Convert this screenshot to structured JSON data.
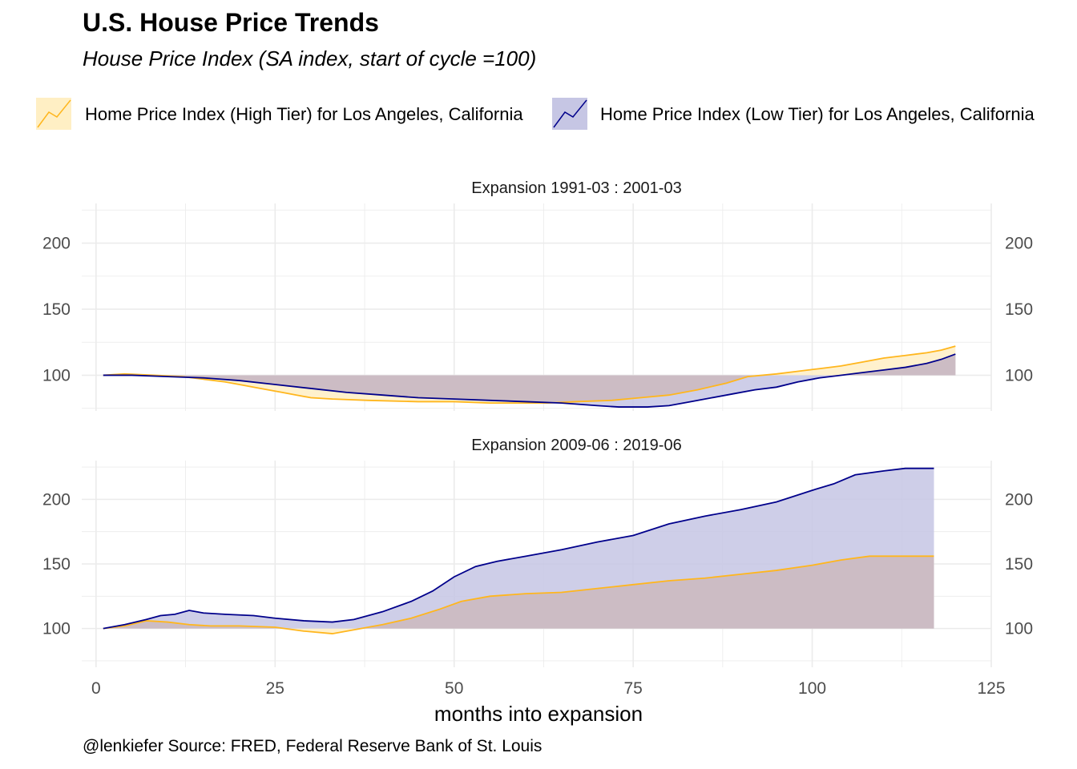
{
  "title": "U.S. House Price Trends",
  "subtitle": "House Price Index (SA index, start of cycle =100)",
  "caption": "@lenkiefer Source: FRED, Federal Reserve Bank of St. Louis",
  "colors": {
    "high": "#FFB61D",
    "high_fill": "#FFEFC4",
    "low": "#00008B",
    "low_fill": "#C6C6E4",
    "overlap_fill": "#CCBCC4",
    "grid": "#EBEBEB"
  },
  "legend": [
    {
      "label": "Home Price Index (High Tier) for Los Angeles, California"
    },
    {
      "label": "Home Price Index (Low Tier) for Los Angeles, California"
    }
  ],
  "chart_data": {
    "type": "area",
    "xlabel": "months into expansion",
    "ylabel": "",
    "xlim": [
      -2,
      125
    ],
    "x_ticks": [
      0,
      25,
      50,
      75,
      100,
      125
    ],
    "y_ticks": [
      100,
      150,
      200
    ],
    "y_axis_both_sides": true,
    "legend_position": "top",
    "baseline": 100,
    "panels": [
      {
        "label": "Expansion 1991-03 : 2001-03",
        "ylim": [
          73,
          230
        ],
        "series": [
          {
            "name": "Home Price Index (High Tier) for Los Angeles, California",
            "points": [
              [
                1,
                100
              ],
              [
                4,
                101
              ],
              [
                8,
                100
              ],
              [
                12,
                99
              ],
              [
                15,
                97
              ],
              [
                18,
                95
              ],
              [
                20,
                93
              ],
              [
                23,
                90
              ],
              [
                26,
                87
              ],
              [
                28,
                85
              ],
              [
                30,
                83
              ],
              [
                33,
                82
              ],
              [
                38,
                81
              ],
              [
                45,
                80
              ],
              [
                50,
                80
              ],
              [
                55,
                79
              ],
              [
                60,
                79
              ],
              [
                63,
                79
              ],
              [
                67,
                80
              ],
              [
                72,
                81
              ],
              [
                76,
                83
              ],
              [
                80,
                85
              ],
              [
                84,
                89
              ],
              [
                88,
                94
              ],
              [
                91,
                99
              ],
              [
                95,
                101
              ],
              [
                98,
                103
              ],
              [
                101,
                105
              ],
              [
                104,
                107
              ],
              [
                107,
                110
              ],
              [
                110,
                113
              ],
              [
                113,
                115
              ],
              [
                116,
                117
              ],
              [
                118,
                119
              ],
              [
                120,
                122
              ]
            ]
          },
          {
            "name": "Home Price Index (Low Tier) for Los Angeles, California",
            "points": [
              [
                1,
                100
              ],
              [
                5,
                100
              ],
              [
                10,
                99
              ],
              [
                15,
                98
              ],
              [
                20,
                96
              ],
              [
                25,
                93
              ],
              [
                30,
                90
              ],
              [
                35,
                87
              ],
              [
                40,
                85
              ],
              [
                45,
                83
              ],
              [
                50,
                82
              ],
              [
                55,
                81
              ],
              [
                60,
                80
              ],
              [
                65,
                79
              ],
              [
                70,
                77
              ],
              [
                73,
                76
              ],
              [
                77,
                76
              ],
              [
                80,
                77
              ],
              [
                83,
                80
              ],
              [
                86,
                83
              ],
              [
                89,
                86
              ],
              [
                92,
                89
              ],
              [
                95,
                91
              ],
              [
                98,
                95
              ],
              [
                101,
                98
              ],
              [
                104,
                100
              ],
              [
                107,
                102
              ],
              [
                110,
                104
              ],
              [
                113,
                106
              ],
              [
                116,
                109
              ],
              [
                118,
                112
              ],
              [
                120,
                116
              ]
            ]
          }
        ]
      },
      {
        "label": "Expansion 2009-06 : 2019-06",
        "ylim": [
          70,
          230
        ],
        "series": [
          {
            "name": "Home Price Index (High Tier) for Los Angeles, California",
            "points": [
              [
                1,
                100
              ],
              [
                4,
                102
              ],
              [
                7,
                106
              ],
              [
                10,
                105
              ],
              [
                13,
                103
              ],
              [
                16,
                102
              ],
              [
                20,
                102
              ],
              [
                25,
                101
              ],
              [
                29,
                98
              ],
              [
                33,
                96
              ],
              [
                37,
                100
              ],
              [
                40,
                103
              ],
              [
                44,
                108
              ],
              [
                48,
                115
              ],
              [
                51,
                121
              ],
              [
                55,
                125
              ],
              [
                60,
                127
              ],
              [
                65,
                128
              ],
              [
                70,
                131
              ],
              [
                75,
                134
              ],
              [
                80,
                137
              ],
              [
                85,
                139
              ],
              [
                90,
                142
              ],
              [
                95,
                145
              ],
              [
                100,
                149
              ],
              [
                104,
                153
              ],
              [
                108,
                156
              ],
              [
                112,
                156
              ],
              [
                117,
                156
              ]
            ]
          },
          {
            "name": "Home Price Index (Low Tier) for Los Angeles, California",
            "points": [
              [
                1,
                100
              ],
              [
                4,
                103
              ],
              [
                7,
                107
              ],
              [
                9,
                110
              ],
              [
                11,
                111
              ],
              [
                13,
                114
              ],
              [
                15,
                112
              ],
              [
                18,
                111
              ],
              [
                22,
                110
              ],
              [
                25,
                108
              ],
              [
                29,
                106
              ],
              [
                33,
                105
              ],
              [
                36,
                107
              ],
              [
                40,
                113
              ],
              [
                44,
                121
              ],
              [
                47,
                129
              ],
              [
                50,
                140
              ],
              [
                53,
                148
              ],
              [
                56,
                152
              ],
              [
                60,
                156
              ],
              [
                65,
                161
              ],
              [
                70,
                167
              ],
              [
                75,
                172
              ],
              [
                80,
                181
              ],
              [
                85,
                187
              ],
              [
                90,
                192
              ],
              [
                95,
                198
              ],
              [
                100,
                207
              ],
              [
                103,
                212
              ],
              [
                106,
                219
              ],
              [
                110,
                222
              ],
              [
                113,
                224
              ],
              [
                117,
                224
              ]
            ]
          }
        ]
      }
    ]
  }
}
